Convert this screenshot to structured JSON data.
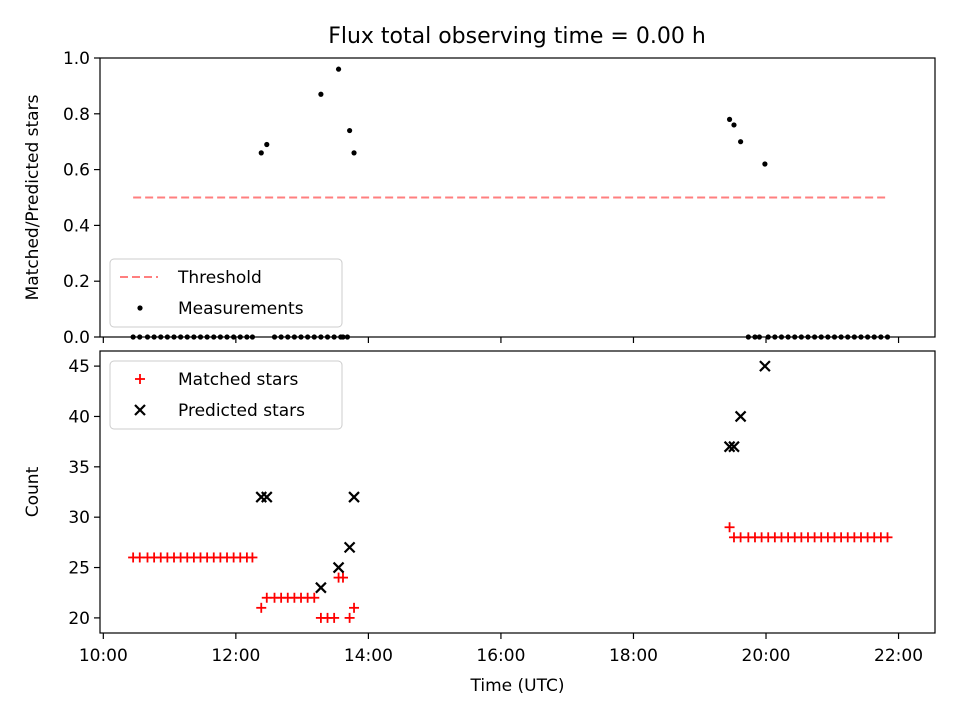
{
  "figure": {
    "title": "Flux total observing time = 0.00 h"
  },
  "chart_data": [
    {
      "type": "scatter",
      "panel": "top",
      "title": "Flux total observing time = 0.00 h",
      "xlabel": "",
      "ylabel": "Matched/Predicted stars",
      "xlim": [
        "09:57",
        "22:33"
      ],
      "ylim": [
        0,
        1.0
      ],
      "yticks": [
        0.0,
        0.2,
        0.4,
        0.6,
        0.8,
        1.0
      ],
      "ytick_labels": [
        "0.0",
        "0.2",
        "0.4",
        "0.6",
        "0.8",
        "1.0"
      ],
      "xticks": [
        "10:00",
        "12:00",
        "14:00",
        "16:00",
        "18:00",
        "20:00",
        "22:00"
      ],
      "legend": {
        "placement": "lower-left",
        "entries": [
          "Threshold",
          "Measurements"
        ]
      },
      "threshold": {
        "name": "Threshold",
        "value": 0.5,
        "x_range": [
          "10:27",
          "21:51"
        ],
        "color": "#ff7f7f",
        "style": "dashed"
      },
      "series": [
        {
          "name": "Measurements",
          "color": "#000000",
          "marker": "dot",
          "points": [
            [
              "10:27",
              0
            ],
            [
              "10:33",
              0
            ],
            [
              "10:40",
              0
            ],
            [
              "10:46",
              0
            ],
            [
              "10:52",
              0
            ],
            [
              "10:58",
              0
            ],
            [
              "11:04",
              0
            ],
            [
              "11:10",
              0
            ],
            [
              "11:16",
              0
            ],
            [
              "11:22",
              0
            ],
            [
              "11:28",
              0
            ],
            [
              "11:34",
              0
            ],
            [
              "11:40",
              0
            ],
            [
              "11:46",
              0
            ],
            [
              "11:52",
              0
            ],
            [
              "11:58",
              0
            ],
            [
              "12:04",
              0
            ],
            [
              "12:10",
              0
            ],
            [
              "12:15",
              0
            ],
            [
              "12:23",
              0.66
            ],
            [
              "12:28",
              0.69
            ],
            [
              "12:35",
              0
            ],
            [
              "12:41",
              0
            ],
            [
              "12:47",
              0
            ],
            [
              "12:53",
              0
            ],
            [
              "12:59",
              0
            ],
            [
              "13:05",
              0
            ],
            [
              "13:11",
              0
            ],
            [
              "13:17",
              0
            ],
            [
              "13:17",
              0.87
            ],
            [
              "13:23",
              0
            ],
            [
              "13:29",
              0
            ],
            [
              "13:33",
              0.96
            ],
            [
              "13:35",
              0
            ],
            [
              "13:41",
              0
            ],
            [
              "13:43",
              0.74
            ],
            [
              "13:47",
              0.66
            ],
            [
              "13:37",
              0
            ],
            [
              "19:27",
              0.78
            ],
            [
              "19:31",
              0.76
            ],
            [
              "19:37",
              0.7
            ],
            [
              "19:44",
              0
            ],
            [
              "19:50",
              0
            ],
            [
              "19:54",
              0
            ],
            [
              "19:59",
              0.62
            ],
            [
              "20:02",
              0
            ],
            [
              "20:08",
              0
            ],
            [
              "20:14",
              0
            ],
            [
              "20:20",
              0
            ],
            [
              "20:26",
              0
            ],
            [
              "20:32",
              0
            ],
            [
              "20:38",
              0
            ],
            [
              "20:44",
              0
            ],
            [
              "20:50",
              0
            ],
            [
              "20:56",
              0
            ],
            [
              "21:02",
              0
            ],
            [
              "21:08",
              0
            ],
            [
              "21:14",
              0
            ],
            [
              "21:20",
              0
            ],
            [
              "21:26",
              0
            ],
            [
              "21:32",
              0
            ],
            [
              "21:38",
              0
            ],
            [
              "21:44",
              0
            ],
            [
              "21:50",
              0
            ]
          ]
        }
      ]
    },
    {
      "type": "scatter",
      "panel": "bottom",
      "title": "",
      "xlabel": "Time (UTC)",
      "ylabel": "Count",
      "xlim": [
        "09:57",
        "22:33"
      ],
      "ylim": [
        18.5,
        46.5
      ],
      "yticks": [
        20,
        25,
        30,
        35,
        40,
        45
      ],
      "ytick_labels": [
        "20",
        "25",
        "30",
        "35",
        "40",
        "45"
      ],
      "xticks": [
        "10:00",
        "12:00",
        "14:00",
        "16:00",
        "18:00",
        "20:00",
        "22:00"
      ],
      "legend": {
        "placement": "upper-left",
        "entries": [
          "Matched stars",
          "Predicted stars"
        ]
      },
      "series": [
        {
          "name": "Matched stars",
          "color": "#ff0000",
          "marker": "plus",
          "points": [
            [
              "10:27",
              26
            ],
            [
              "10:33",
              26
            ],
            [
              "10:40",
              26
            ],
            [
              "10:46",
              26
            ],
            [
              "10:52",
              26
            ],
            [
              "10:58",
              26
            ],
            [
              "11:04",
              26
            ],
            [
              "11:10",
              26
            ],
            [
              "11:16",
              26
            ],
            [
              "11:22",
              26
            ],
            [
              "11:28",
              26
            ],
            [
              "11:34",
              26
            ],
            [
              "11:40",
              26
            ],
            [
              "11:46",
              26
            ],
            [
              "11:52",
              26
            ],
            [
              "11:58",
              26
            ],
            [
              "12:04",
              26
            ],
            [
              "12:10",
              26
            ],
            [
              "12:15",
              26
            ],
            [
              "12:23",
              21
            ],
            [
              "12:28",
              22
            ],
            [
              "12:35",
              22
            ],
            [
              "12:41",
              22
            ],
            [
              "12:47",
              22
            ],
            [
              "12:53",
              22
            ],
            [
              "12:59",
              22
            ],
            [
              "13:05",
              22
            ],
            [
              "13:11",
              22
            ],
            [
              "13:17",
              20
            ],
            [
              "13:23",
              20
            ],
            [
              "13:29",
              20
            ],
            [
              "13:33",
              24
            ],
            [
              "13:37",
              24
            ],
            [
              "13:43",
              20
            ],
            [
              "13:47",
              21
            ],
            [
              "19:27",
              29
            ],
            [
              "19:31",
              28
            ],
            [
              "19:37",
              28
            ],
            [
              "19:44",
              28
            ],
            [
              "19:50",
              28
            ],
            [
              "19:56",
              28
            ],
            [
              "20:02",
              28
            ],
            [
              "20:08",
              28
            ],
            [
              "20:14",
              28
            ],
            [
              "20:20",
              28
            ],
            [
              "20:26",
              28
            ],
            [
              "20:32",
              28
            ],
            [
              "20:38",
              28
            ],
            [
              "20:44",
              28
            ],
            [
              "20:50",
              28
            ],
            [
              "20:56",
              28
            ],
            [
              "21:02",
              28
            ],
            [
              "21:08",
              28
            ],
            [
              "21:14",
              28
            ],
            [
              "21:20",
              28
            ],
            [
              "21:26",
              28
            ],
            [
              "21:32",
              28
            ],
            [
              "21:38",
              28
            ],
            [
              "21:44",
              28
            ],
            [
              "21:50",
              28
            ]
          ]
        },
        {
          "name": "Predicted stars",
          "color": "#000000",
          "marker": "x",
          "points": [
            [
              "12:23",
              32
            ],
            [
              "12:28",
              32
            ],
            [
              "13:17",
              23
            ],
            [
              "13:33",
              25
            ],
            [
              "13:43",
              27
            ],
            [
              "13:47",
              32
            ],
            [
              "19:27",
              37
            ],
            [
              "19:31",
              37
            ],
            [
              "19:37",
              40
            ],
            [
              "19:59",
              45
            ]
          ]
        }
      ]
    }
  ]
}
